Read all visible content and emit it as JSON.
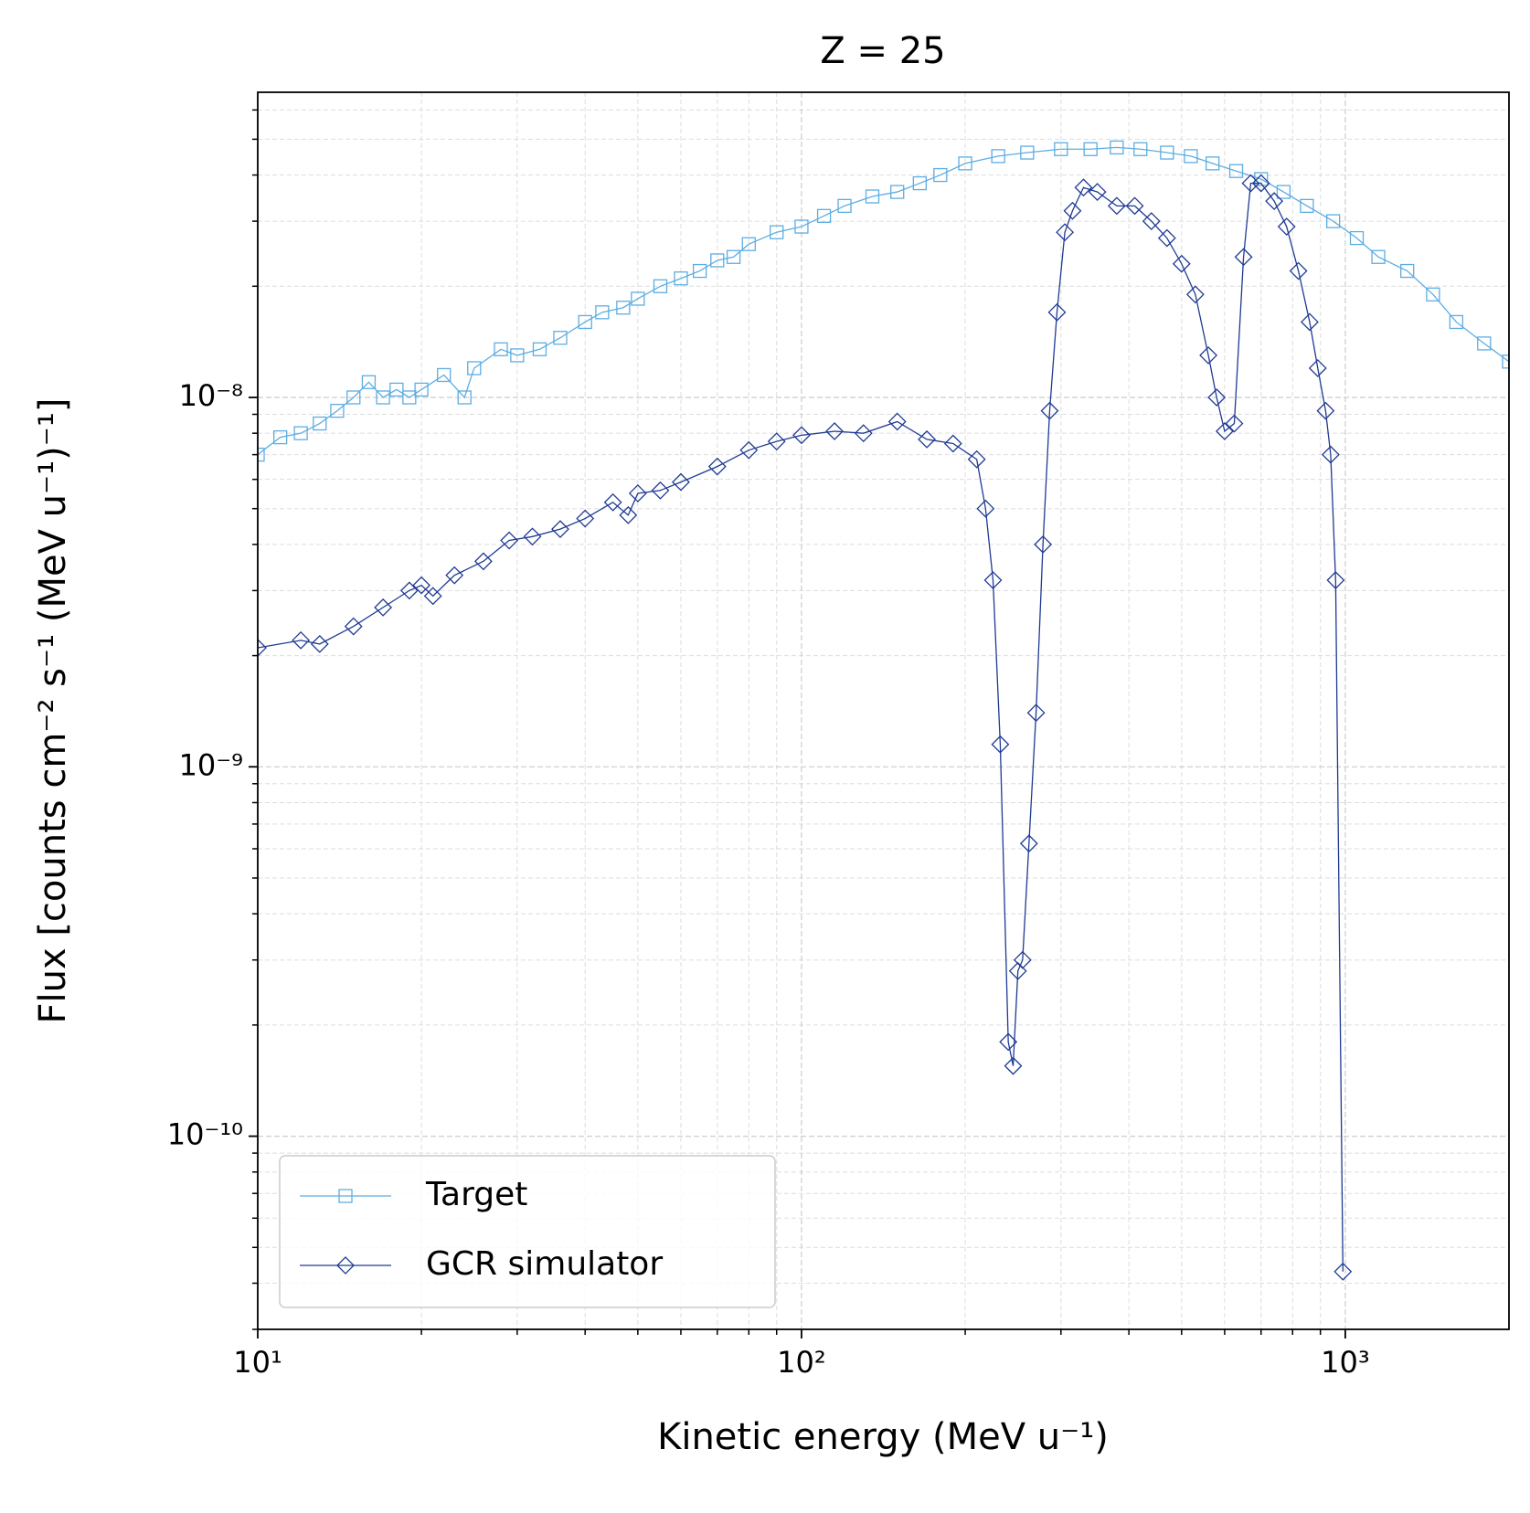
{
  "chart_data": {
    "type": "line",
    "title": "Z = 25",
    "x_label": "Kinetic energy (MeV u⁻¹)",
    "y_label": "Flux [counts cm⁻² s⁻¹ (MeV u⁻¹)⁻¹]",
    "xscale": "log",
    "yscale": "log",
    "grid": true,
    "legend": "lower left",
    "xlim": [
      10,
      2000
    ],
    "ylim": [
      3e-11,
      6.7e-08
    ],
    "xticks": [
      {
        "value": 10,
        "label": "10¹"
      },
      {
        "value": 100,
        "label": "10²"
      },
      {
        "value": 1000,
        "label": "10³"
      }
    ],
    "yticks": [
      {
        "value": 1e-10,
        "label": "10⁻¹⁰"
      },
      {
        "value": 1e-09,
        "label": "10⁻⁹"
      },
      {
        "value": 1e-08,
        "label": "10⁻⁸"
      }
    ],
    "xminorticks": [
      20,
      30,
      40,
      50,
      60,
      70,
      80,
      90,
      200,
      300,
      400,
      500,
      600,
      700,
      800,
      900
    ],
    "yminorticks": [
      3e-11,
      4e-11,
      5e-11,
      6e-11,
      7e-11,
      8e-11,
      9e-11,
      2e-10,
      3e-10,
      4e-10,
      5e-10,
      6e-10,
      7e-10,
      8e-10,
      9e-10,
      2e-09,
      3e-09,
      4e-09,
      5e-09,
      6e-09,
      7e-09,
      8e-09,
      9e-09,
      2e-08,
      3e-08,
      4e-08,
      5e-08,
      6e-08
    ],
    "series": [
      {
        "name": "Target",
        "color": "#5dade2",
        "marker": "square",
        "x": [
          10,
          11,
          12,
          13,
          14,
          15,
          16,
          17,
          18,
          19,
          20,
          22,
          24,
          25,
          28,
          30,
          33,
          36,
          40,
          43,
          47,
          50,
          55,
          60,
          65,
          70,
          75,
          80,
          90,
          100,
          110,
          120,
          135,
          150,
          165,
          180,
          200,
          230,
          260,
          300,
          340,
          380,
          420,
          470,
          520,
          570,
          630,
          700,
          770,
          850,
          950,
          1050,
          1150,
          1300,
          1450,
          1600,
          1800,
          2000
        ],
        "values": [
          7e-09,
          7.8e-09,
          8e-09,
          8.5e-09,
          9.2e-09,
          1e-08,
          1.1e-08,
          1e-08,
          1.05e-08,
          1e-08,
          1.05e-08,
          1.15e-08,
          1e-08,
          1.2e-08,
          1.35e-08,
          1.3e-08,
          1.35e-08,
          1.45e-08,
          1.6e-08,
          1.7e-08,
          1.75e-08,
          1.85e-08,
          2e-08,
          2.1e-08,
          2.2e-08,
          2.35e-08,
          2.4e-08,
          2.6e-08,
          2.8e-08,
          2.9e-08,
          3.1e-08,
          3.3e-08,
          3.5e-08,
          3.6e-08,
          3.8e-08,
          4e-08,
          4.3e-08,
          4.5e-08,
          4.6e-08,
          4.7e-08,
          4.7e-08,
          4.75e-08,
          4.7e-08,
          4.6e-08,
          4.5e-08,
          4.3e-08,
          4.1e-08,
          3.9e-08,
          3.6e-08,
          3.3e-08,
          3e-08,
          2.7e-08,
          2.4e-08,
          2.2e-08,
          1.9e-08,
          1.6e-08,
          1.4e-08,
          1.25e-08
        ]
      },
      {
        "name": "GCR simulator",
        "color": "#1f3a93",
        "marker": "diamond",
        "x": [
          10,
          12,
          13,
          15,
          17,
          19,
          20,
          21,
          23,
          26,
          29,
          32,
          36,
          40,
          45,
          48,
          50,
          55,
          60,
          70,
          80,
          90,
          100,
          115,
          130,
          150,
          170,
          190,
          210,
          218,
          225,
          232,
          240,
          245,
          250,
          255,
          262,
          270,
          278,
          286,
          295,
          305,
          315,
          330,
          350,
          380,
          410,
          440,
          470,
          500,
          530,
          560,
          580,
          600,
          625,
          650,
          670,
          700,
          740,
          780,
          820,
          860,
          890,
          920,
          940,
          960,
          990
        ],
        "values": [
          2.1e-09,
          2.2e-09,
          2.15e-09,
          2.4e-09,
          2.7e-09,
          3e-09,
          3.1e-09,
          2.9e-09,
          3.3e-09,
          3.6e-09,
          4.1e-09,
          4.2e-09,
          4.4e-09,
          4.7e-09,
          5.2e-09,
          4.8e-09,
          5.5e-09,
          5.6e-09,
          5.9e-09,
          6.5e-09,
          7.2e-09,
          7.6e-09,
          7.9e-09,
          8.1e-09,
          8e-09,
          8.6e-09,
          7.7e-09,
          7.5e-09,
          6.8e-09,
          5e-09,
          3.2e-09,
          1.15e-09,
          1.8e-10,
          1.55e-10,
          2.8e-10,
          3e-10,
          6.2e-10,
          1.4e-09,
          4e-09,
          9.2e-09,
          1.7e-08,
          2.8e-08,
          3.2e-08,
          3.7e-08,
          3.6e-08,
          3.3e-08,
          3.3e-08,
          3e-08,
          2.7e-08,
          2.3e-08,
          1.9e-08,
          1.3e-08,
          1e-08,
          8.1e-09,
          8.5e-09,
          2.4e-08,
          3.8e-08,
          3.8e-08,
          3.4e-08,
          2.9e-08,
          2.2e-08,
          1.6e-08,
          1.2e-08,
          9.2e-09,
          7e-09,
          3.2e-09,
          4.3e-11
        ]
      }
    ]
  }
}
